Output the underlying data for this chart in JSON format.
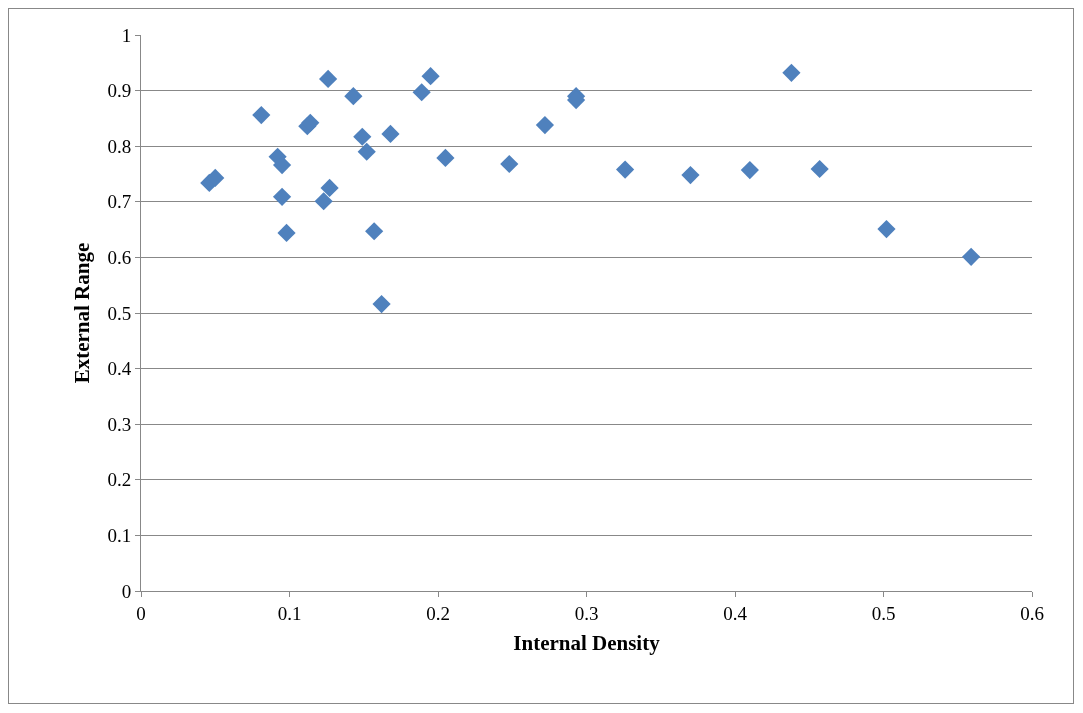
{
  "chart_data": {
    "type": "scatter",
    "xlabel": "Internal Density",
    "ylabel": "External Range",
    "x": [
      0.046,
      0.05,
      0.081,
      0.092,
      0.095,
      0.095,
      0.098,
      0.112,
      0.114,
      0.126,
      0.123,
      0.127,
      0.143,
      0.149,
      0.152,
      0.157,
      0.168,
      0.162,
      0.189,
      0.195,
      0.205,
      0.248,
      0.272,
      0.293,
      0.293,
      0.326,
      0.37,
      0.41,
      0.438,
      0.457,
      0.502,
      0.559
    ],
    "values": [
      0.734,
      0.743,
      0.856,
      0.781,
      0.766,
      0.709,
      0.644,
      0.836,
      0.842,
      0.921,
      0.701,
      0.725,
      0.89,
      0.817,
      0.79,
      0.647,
      0.822,
      0.516,
      0.897,
      0.926,
      0.779,
      0.768,
      0.838,
      0.89,
      0.883,
      0.758,
      0.748,
      0.757,
      0.932,
      0.759,
      0.651,
      0.601
    ],
    "color": "#4f81bd",
    "marker": "diamond",
    "grid": "y",
    "legend": false,
    "xlim": [
      0,
      0.6
    ],
    "xticks": [
      0,
      0.1,
      0.2,
      0.3,
      0.4,
      0.5,
      0.6
    ],
    "ylim": [
      0,
      1
    ],
    "yticks": [
      0,
      0.1,
      0.2,
      0.3,
      0.4,
      0.5,
      0.6,
      0.7,
      0.8,
      0.9,
      1
    ]
  }
}
